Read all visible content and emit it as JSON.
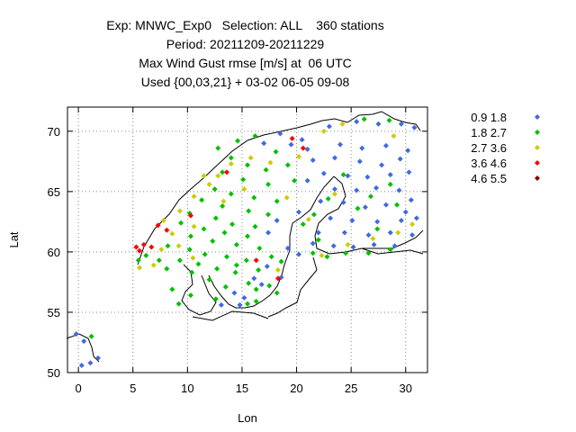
{
  "title_lines": [
    "Exp: MNWC_Exp0   Selection: ALL    360 stations",
    "Period: 20211209-20211229",
    "Max Wind Gust rmse [m/s] at  06 UTC",
    "Used {00,03,21} + 03-02 06-05 09-08"
  ],
  "chart_data": {
    "type": "scatter",
    "title": "Max Wind Gust rmse [m/s] at  06 UTC",
    "xlabel": "Lon",
    "ylabel": "Lat",
    "xlim": [
      -1,
      32
    ],
    "ylim": [
      50,
      72
    ],
    "xticks": [
      0,
      5,
      10,
      15,
      20,
      25,
      30
    ],
    "yticks": [
      50,
      55,
      60,
      65,
      70
    ],
    "grid": true,
    "grid_style": "dotted",
    "legend_position": "right-outside",
    "series": [
      {
        "name": "0.9 1.8",
        "color": "#4169e1",
        "points": [
          [
            -0.2,
            53.2
          ],
          [
            0.5,
            52.6
          ],
          [
            1.8,
            51.2
          ],
          [
            1.1,
            50.8
          ],
          [
            0.3,
            50.6
          ],
          [
            17,
            69
          ],
          [
            18.5,
            69.8
          ],
          [
            20.5,
            69.3
          ],
          [
            23,
            70.4
          ],
          [
            25.5,
            70.8
          ],
          [
            27.5,
            70.6
          ],
          [
            29.6,
            70.6
          ],
          [
            30.8,
            70.3
          ],
          [
            19.5,
            68.9
          ],
          [
            21,
            68.5
          ],
          [
            24,
            68.9
          ],
          [
            26,
            68.6
          ],
          [
            28.2,
            68.8
          ],
          [
            30.2,
            68.4
          ],
          [
            21.5,
            67.6
          ],
          [
            23.5,
            67.8
          ],
          [
            25.8,
            67.5
          ],
          [
            27.8,
            67.2
          ],
          [
            29.5,
            67.7
          ],
          [
            22.5,
            66.5
          ],
          [
            24.7,
            66.3
          ],
          [
            26.5,
            66.2
          ],
          [
            28.6,
            66.4
          ],
          [
            30.3,
            66.6
          ],
          [
            21,
            65.9
          ],
          [
            23.5,
            65.2
          ],
          [
            25.5,
            65.1
          ],
          [
            27.3,
            65.3
          ],
          [
            29.4,
            65.1
          ],
          [
            30.5,
            64.3
          ],
          [
            22.2,
            64.2
          ],
          [
            24.3,
            64.1
          ],
          [
            26.3,
            63.7
          ],
          [
            28.2,
            63.9
          ],
          [
            30,
            63.3
          ],
          [
            31,
            62.8
          ],
          [
            23.1,
            62.8
          ],
          [
            25.1,
            62.6
          ],
          [
            27.4,
            62.5
          ],
          [
            29.6,
            62.6
          ],
          [
            22,
            61.6
          ],
          [
            24.4,
            61.6
          ],
          [
            26.6,
            61.4
          ],
          [
            28.6,
            61.6
          ],
          [
            30.6,
            61.4
          ],
          [
            21.5,
            60.7
          ],
          [
            23.4,
            60.5
          ],
          [
            25.2,
            60.4
          ],
          [
            27.1,
            60.6
          ],
          [
            29,
            60.5
          ],
          [
            20.2,
            63.3
          ],
          [
            18.2,
            62.6
          ],
          [
            17.4,
            61.6
          ],
          [
            19.2,
            60.3
          ],
          [
            20.2,
            59.8
          ],
          [
            17.3,
            58.8
          ],
          [
            16.1,
            57.8
          ],
          [
            14.3,
            56.6
          ],
          [
            13.1,
            55.6
          ],
          [
            15.2,
            56.2
          ],
          [
            16.8,
            57.3
          ],
          [
            18.6,
            57.9
          ],
          [
            14.8,
            55.6
          ]
        ]
      },
      {
        "name": "1.8 2.7",
        "color": "#00c000",
        "points": [
          [
            1.2,
            53
          ],
          [
            12.8,
            68.6
          ],
          [
            14.6,
            69.2
          ],
          [
            16.2,
            69.6
          ],
          [
            18.1,
            68.3
          ],
          [
            26.2,
            71
          ],
          [
            28.5,
            70.9
          ],
          [
            14,
            67.8
          ],
          [
            15.5,
            67.2
          ],
          [
            17.2,
            66.8
          ],
          [
            19.2,
            67.2
          ],
          [
            13.2,
            66.6
          ],
          [
            15.1,
            66
          ],
          [
            17.4,
            65.6
          ],
          [
            19.8,
            65.9
          ],
          [
            12.5,
            65.2
          ],
          [
            14,
            64.8
          ],
          [
            16.1,
            64.5
          ],
          [
            18.2,
            64.2
          ],
          [
            11.3,
            64.3
          ],
          [
            13.2,
            63.8
          ],
          [
            15.6,
            63.4
          ],
          [
            17.4,
            63.1
          ],
          [
            10.2,
            63.2
          ],
          [
            12.6,
            62.8
          ],
          [
            14.1,
            62.3
          ],
          [
            16.2,
            62.1
          ],
          [
            9.4,
            62.4
          ],
          [
            11.5,
            61.9
          ],
          [
            13.4,
            61.6
          ],
          [
            15.5,
            61.3
          ],
          [
            10.3,
            61.3
          ],
          [
            12.3,
            60.9
          ],
          [
            14.5,
            60.6
          ],
          [
            16.6,
            60.3
          ],
          [
            8.2,
            60.5
          ],
          [
            10.2,
            60.2
          ],
          [
            11.6,
            59.8
          ],
          [
            13.6,
            59.6
          ],
          [
            15.4,
            59.3
          ],
          [
            17.7,
            59.6
          ],
          [
            18.6,
            59.2
          ],
          [
            9.3,
            59.3
          ],
          [
            11,
            59
          ],
          [
            12.7,
            58.6
          ],
          [
            14.4,
            58.3
          ],
          [
            7.4,
            59.3
          ],
          [
            8.1,
            58.6
          ],
          [
            10.4,
            58.3
          ],
          [
            5.5,
            59.3
          ],
          [
            6.2,
            59.7
          ],
          [
            12,
            57.7
          ],
          [
            13.5,
            57.1
          ],
          [
            12.6,
            56.1
          ],
          [
            10.3,
            56.4
          ],
          [
            9.2,
            55.7
          ],
          [
            8.6,
            56.9
          ],
          [
            14.5,
            58.9
          ],
          [
            16.5,
            58.5
          ],
          [
            21.5,
            59.9
          ],
          [
            22.8,
            59.6
          ],
          [
            24.5,
            59.9
          ],
          [
            26.6,
            59.9
          ],
          [
            28.6,
            60.2
          ],
          [
            22,
            61
          ],
          [
            20.6,
            62.3
          ],
          [
            21.6,
            63.1
          ],
          [
            22.9,
            64.4
          ],
          [
            24.3,
            66.4
          ],
          [
            26.8,
            64.6
          ],
          [
            28.6,
            65.6
          ],
          [
            29.2,
            63.9
          ],
          [
            25.6,
            63.6
          ],
          [
            27.4,
            61.9
          ],
          [
            17.5,
            57.2
          ],
          [
            18.2,
            56.6
          ],
          [
            16.3,
            56.9
          ],
          [
            15.6,
            57.4
          ],
          [
            15.5,
            55.7
          ],
          [
            16.3,
            55.9
          ]
        ]
      },
      {
        "name": "2.7 3.6",
        "color": "#cccc00",
        "points": [
          [
            8.6,
            61.5
          ],
          [
            7.8,
            62.6
          ],
          [
            9.3,
            63.4
          ],
          [
            10.6,
            64.6
          ],
          [
            12,
            65.6
          ],
          [
            12.8,
            66.3
          ],
          [
            14,
            67.3
          ],
          [
            15.8,
            67.8
          ],
          [
            17.6,
            67.4
          ],
          [
            20.2,
            67.9
          ],
          [
            22.5,
            70
          ],
          [
            24.2,
            70.6
          ],
          [
            28.9,
            69.6
          ],
          [
            9.2,
            60.5
          ],
          [
            7.6,
            60.2
          ],
          [
            6.9,
            58.9
          ],
          [
            5.6,
            58.7
          ],
          [
            10.6,
            62.1
          ],
          [
            13.3,
            64.2
          ],
          [
            19.1,
            64.5
          ],
          [
            21.1,
            62.7
          ],
          [
            23.5,
            64.8
          ],
          [
            18.3,
            58.5
          ],
          [
            22.3,
            59.7
          ],
          [
            24.7,
            60.6
          ],
          [
            27,
            61.1
          ],
          [
            29.3,
            61.6
          ],
          [
            30.6,
            62.3
          ],
          [
            11.5,
            66.3
          ],
          [
            15.2,
            65.2
          ],
          [
            10.5,
            59.5
          ]
        ]
      },
      {
        "name": "3.6 4.6",
        "color": "#ff0000",
        "points": [
          [
            5.3,
            60.4
          ],
          [
            6,
            60.6
          ],
          [
            6.7,
            60.4
          ],
          [
            5.6,
            60.1
          ],
          [
            7.3,
            62.2
          ],
          [
            8.1,
            61.8
          ],
          [
            10.3,
            63
          ],
          [
            13.6,
            66.6
          ],
          [
            19.6,
            69.4
          ],
          [
            20.6,
            68.6
          ],
          [
            16.3,
            59.3
          ],
          [
            18.3,
            57.8
          ]
        ]
      },
      {
        "name": "4.6 5.5",
        "color": "#8b0000",
        "points": []
      }
    ]
  }
}
